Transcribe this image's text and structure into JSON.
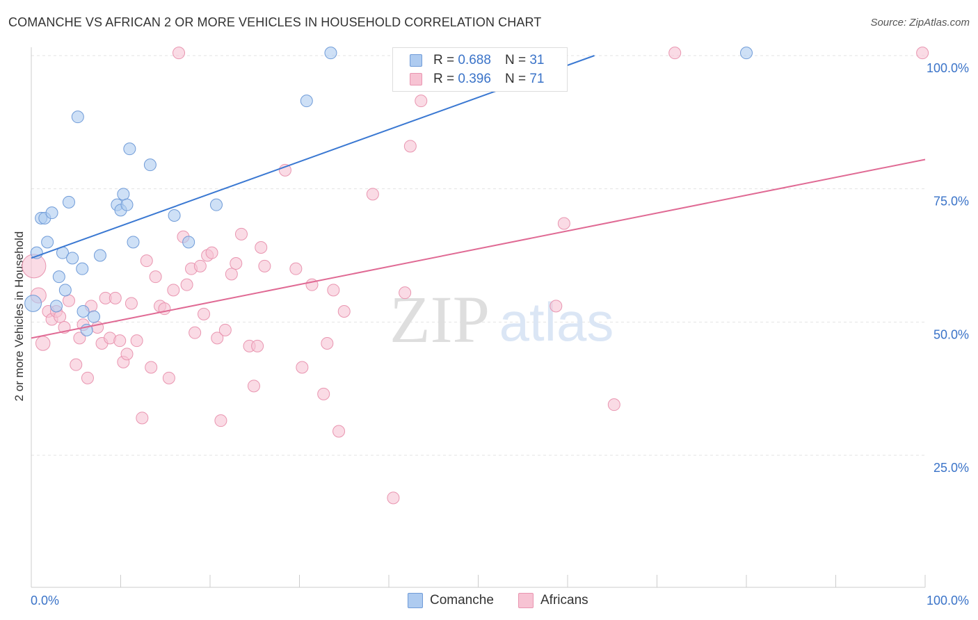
{
  "title": "COMANCHE VS AFRICAN 2 OR MORE VEHICLES IN HOUSEHOLD CORRELATION CHART",
  "source": "Source: ZipAtlas.com",
  "watermark": {
    "zip": "ZIP",
    "atlas": "atlas"
  },
  "colors": {
    "comanche_fill": "#aecbf0",
    "comanche_stroke": "#6f9bd8",
    "comanche_line": "#3a78d2",
    "africans_fill": "#f7c3d3",
    "africans_stroke": "#e995b0",
    "africans_line": "#e06a94",
    "tick_label": "#3a73c8",
    "grid": "#e3e3e3"
  },
  "legend": {
    "rows": [
      {
        "r_label": "R =",
        "r_value": "0.688",
        "n_label": "N =",
        "n_value": "31"
      },
      {
        "r_label": "R =",
        "r_value": "0.396",
        "n_label": "N =",
        "n_value": "71"
      }
    ],
    "bottom": [
      "Comanche",
      "Africans"
    ]
  },
  "chart_data": {
    "type": "scatter",
    "title": "COMANCHE VS AFRICAN 2 OR MORE VEHICLES IN HOUSEHOLD CORRELATION CHART",
    "xlabel": "",
    "ylabel": "2 or more Vehicles in Household",
    "xlim": [
      0,
      100
    ],
    "ylim": [
      2,
      102
    ],
    "x_tick_labels": [
      "0.0%",
      "100.0%"
    ],
    "y_ticks": [
      25,
      50,
      75,
      100
    ],
    "y_tick_labels": [
      "25.0%",
      "50.0%",
      "75.0%",
      "100.0%"
    ],
    "grid": true,
    "legend_position": "top-center",
    "series": [
      {
        "name": "Comanche",
        "R": 0.688,
        "N": 31,
        "trend": {
          "x": [
            0,
            63
          ],
          "y": [
            62,
            100
          ]
        },
        "points": [
          {
            "x": 0.2,
            "y": 53.5,
            "s": 1.4
          },
          {
            "x": 0.6,
            "y": 63,
            "s": 1
          },
          {
            "x": 1.1,
            "y": 69.5,
            "s": 1
          },
          {
            "x": 1.5,
            "y": 69.5,
            "s": 1
          },
          {
            "x": 1.8,
            "y": 65,
            "s": 1
          },
          {
            "x": 2.3,
            "y": 70.5,
            "s": 1
          },
          {
            "x": 2.8,
            "y": 53,
            "s": 1
          },
          {
            "x": 3.1,
            "y": 58.5,
            "s": 1
          },
          {
            "x": 3.5,
            "y": 63,
            "s": 1
          },
          {
            "x": 3.8,
            "y": 56,
            "s": 1
          },
          {
            "x": 4.2,
            "y": 72.5,
            "s": 1
          },
          {
            "x": 4.6,
            "y": 62,
            "s": 1
          },
          {
            "x": 5.2,
            "y": 88.5,
            "s": 1
          },
          {
            "x": 5.7,
            "y": 60,
            "s": 1
          },
          {
            "x": 5.8,
            "y": 52,
            "s": 1
          },
          {
            "x": 6.2,
            "y": 48.5,
            "s": 1
          },
          {
            "x": 7.0,
            "y": 51,
            "s": 1
          },
          {
            "x": 7.7,
            "y": 62.5,
            "s": 1
          },
          {
            "x": 9.6,
            "y": 72,
            "s": 1
          },
          {
            "x": 10.0,
            "y": 71,
            "s": 1
          },
          {
            "x": 10.3,
            "y": 74,
            "s": 1
          },
          {
            "x": 10.7,
            "y": 72,
            "s": 1
          },
          {
            "x": 11.0,
            "y": 82.5,
            "s": 1
          },
          {
            "x": 11.4,
            "y": 65,
            "s": 1
          },
          {
            "x": 13.3,
            "y": 79.5,
            "s": 1
          },
          {
            "x": 16.0,
            "y": 70,
            "s": 1
          },
          {
            "x": 17.6,
            "y": 65,
            "s": 1
          },
          {
            "x": 20.7,
            "y": 72,
            "s": 1
          },
          {
            "x": 30.8,
            "y": 91.5,
            "s": 1
          },
          {
            "x": 33.5,
            "y": 100.5,
            "s": 1
          },
          {
            "x": 80.0,
            "y": 100.5,
            "s": 1
          }
        ]
      },
      {
        "name": "Africans",
        "R": 0.396,
        "N": 71,
        "trend": {
          "x": [
            0,
            100
          ],
          "y": [
            47,
            80.5
          ]
        },
        "points": [
          {
            "x": 0.3,
            "y": 60.5,
            "s": 2.0
          },
          {
            "x": 0.8,
            "y": 55,
            "s": 1.3
          },
          {
            "x": 1.3,
            "y": 46,
            "s": 1.2
          },
          {
            "x": 1.9,
            "y": 52,
            "s": 1
          },
          {
            "x": 2.3,
            "y": 50.5,
            "s": 1
          },
          {
            "x": 2.8,
            "y": 52,
            "s": 1
          },
          {
            "x": 3.2,
            "y": 51,
            "s": 1
          },
          {
            "x": 3.7,
            "y": 49,
            "s": 1
          },
          {
            "x": 4.2,
            "y": 54,
            "s": 1
          },
          {
            "x": 5.0,
            "y": 42,
            "s": 1
          },
          {
            "x": 5.4,
            "y": 47,
            "s": 1
          },
          {
            "x": 5.8,
            "y": 49.5,
            "s": 1
          },
          {
            "x": 6.3,
            "y": 39.5,
            "s": 1
          },
          {
            "x": 6.7,
            "y": 53,
            "s": 1
          },
          {
            "x": 7.4,
            "y": 49,
            "s": 1
          },
          {
            "x": 7.9,
            "y": 46,
            "s": 1
          },
          {
            "x": 8.3,
            "y": 54.5,
            "s": 1
          },
          {
            "x": 8.8,
            "y": 47,
            "s": 1
          },
          {
            "x": 9.4,
            "y": 54.5,
            "s": 1
          },
          {
            "x": 9.9,
            "y": 46.5,
            "s": 1
          },
          {
            "x": 10.3,
            "y": 42.5,
            "s": 1
          },
          {
            "x": 10.7,
            "y": 44,
            "s": 1
          },
          {
            "x": 11.2,
            "y": 53.5,
            "s": 1
          },
          {
            "x": 11.8,
            "y": 46.5,
            "s": 1
          },
          {
            "x": 12.4,
            "y": 32,
            "s": 1
          },
          {
            "x": 12.9,
            "y": 61.5,
            "s": 1
          },
          {
            "x": 13.4,
            "y": 41.5,
            "s": 1
          },
          {
            "x": 13.9,
            "y": 58.5,
            "s": 1
          },
          {
            "x": 14.4,
            "y": 53,
            "s": 1
          },
          {
            "x": 14.9,
            "y": 52.5,
            "s": 1
          },
          {
            "x": 15.4,
            "y": 39.5,
            "s": 1
          },
          {
            "x": 15.9,
            "y": 56,
            "s": 1
          },
          {
            "x": 16.5,
            "y": 100.5,
            "s": 1
          },
          {
            "x": 17.0,
            "y": 66,
            "s": 1
          },
          {
            "x": 17.4,
            "y": 57,
            "s": 1
          },
          {
            "x": 17.9,
            "y": 60,
            "s": 1
          },
          {
            "x": 18.3,
            "y": 48,
            "s": 1
          },
          {
            "x": 18.9,
            "y": 60.5,
            "s": 1
          },
          {
            "x": 19.3,
            "y": 51.5,
            "s": 1
          },
          {
            "x": 19.7,
            "y": 62.5,
            "s": 1
          },
          {
            "x": 20.2,
            "y": 63,
            "s": 1
          },
          {
            "x": 20.8,
            "y": 47,
            "s": 1
          },
          {
            "x": 21.2,
            "y": 31.5,
            "s": 1
          },
          {
            "x": 21.7,
            "y": 48.5,
            "s": 1
          },
          {
            "x": 22.4,
            "y": 59,
            "s": 1
          },
          {
            "x": 22.9,
            "y": 61,
            "s": 1
          },
          {
            "x": 23.5,
            "y": 66.5,
            "s": 1
          },
          {
            "x": 24.4,
            "y": 45.5,
            "s": 1
          },
          {
            "x": 24.9,
            "y": 38,
            "s": 1
          },
          {
            "x": 25.3,
            "y": 45.5,
            "s": 1
          },
          {
            "x": 25.7,
            "y": 64,
            "s": 1
          },
          {
            "x": 26.1,
            "y": 60.5,
            "s": 1
          },
          {
            "x": 28.4,
            "y": 78.5,
            "s": 1
          },
          {
            "x": 29.6,
            "y": 60,
            "s": 1
          },
          {
            "x": 30.3,
            "y": 41.5,
            "s": 1
          },
          {
            "x": 31.4,
            "y": 57,
            "s": 1
          },
          {
            "x": 32.7,
            "y": 36.5,
            "s": 1
          },
          {
            "x": 33.1,
            "y": 46,
            "s": 1
          },
          {
            "x": 33.8,
            "y": 56,
            "s": 1
          },
          {
            "x": 34.4,
            "y": 29.5,
            "s": 1
          },
          {
            "x": 35.0,
            "y": 52,
            "s": 1
          },
          {
            "x": 38.2,
            "y": 74,
            "s": 1
          },
          {
            "x": 40.5,
            "y": 17,
            "s": 1
          },
          {
            "x": 41.8,
            "y": 55.5,
            "s": 1
          },
          {
            "x": 42.4,
            "y": 83,
            "s": 1
          },
          {
            "x": 43.6,
            "y": 91.5,
            "s": 1
          },
          {
            "x": 58.7,
            "y": 53,
            "s": 1
          },
          {
            "x": 59.6,
            "y": 68.5,
            "s": 1
          },
          {
            "x": 65.2,
            "y": 34.5,
            "s": 1
          },
          {
            "x": 72.0,
            "y": 100.5,
            "s": 1
          },
          {
            "x": 99.7,
            "y": 100.5,
            "s": 1
          }
        ]
      }
    ]
  }
}
